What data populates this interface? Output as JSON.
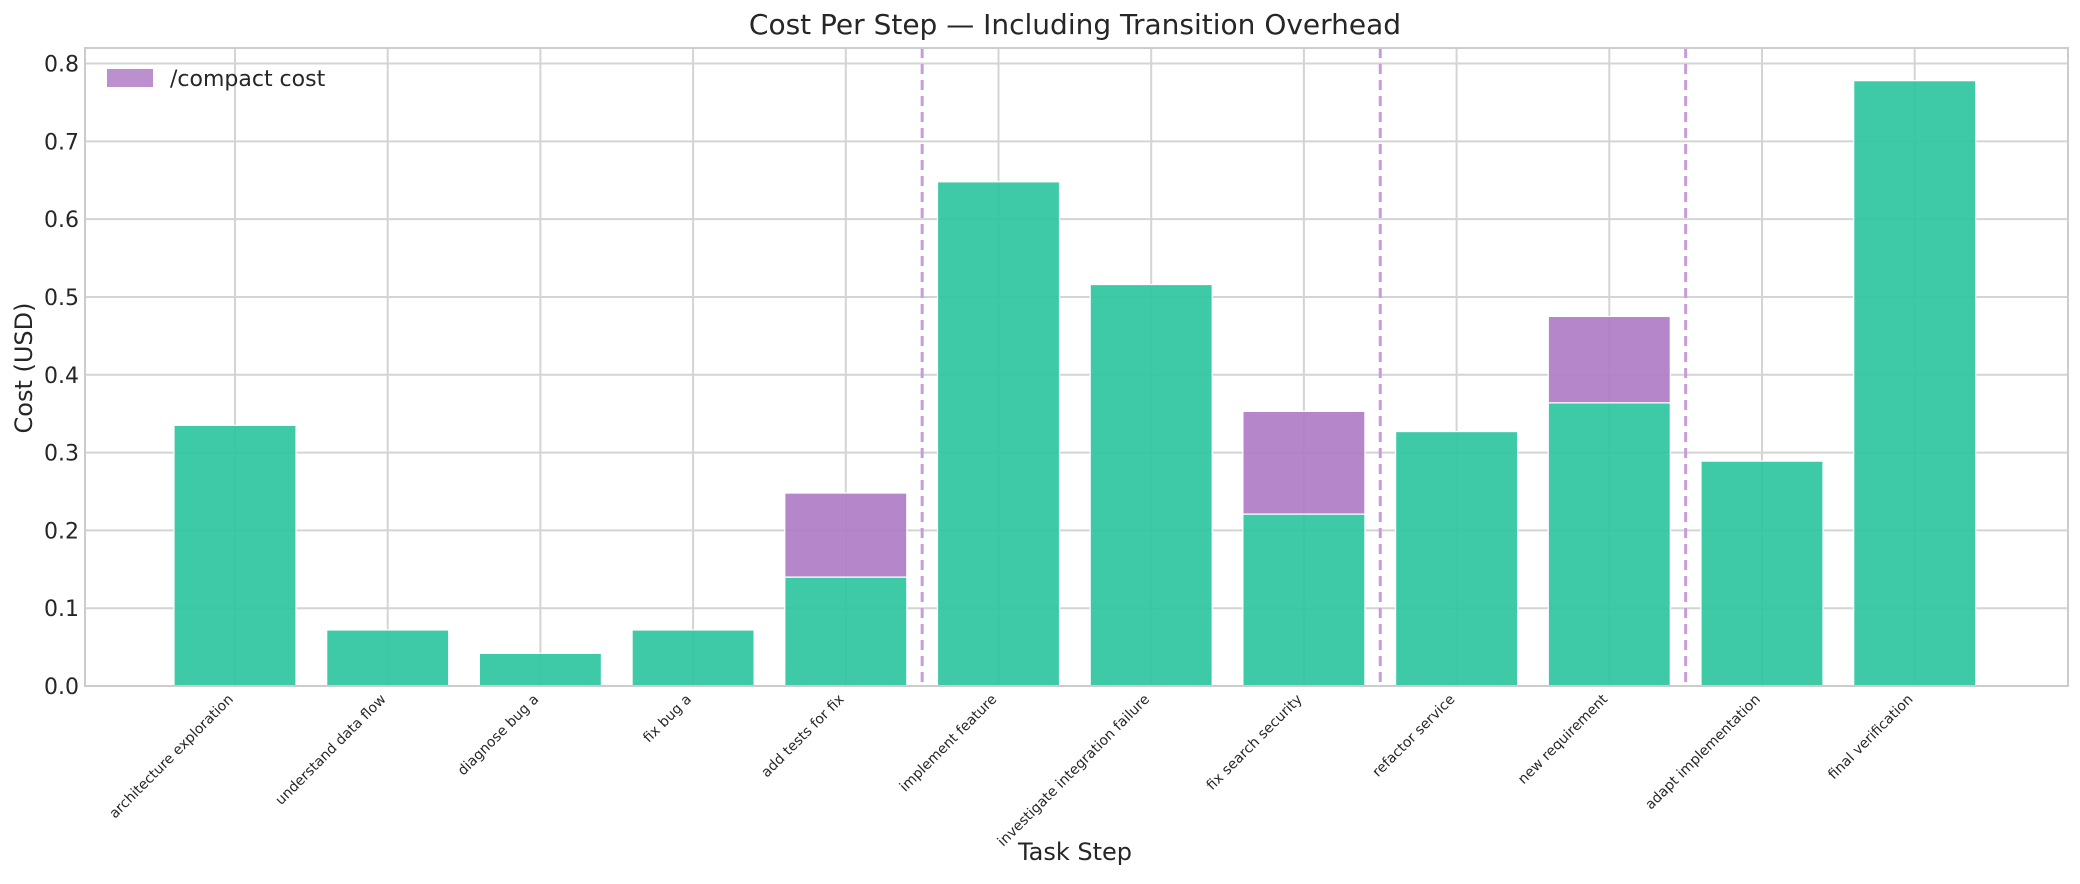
{
  "chart_data": {
    "type": "bar",
    "title": "Cost Per Step — Including Transition Overhead",
    "xlabel": "Task Step",
    "ylabel": "Cost (USD)",
    "ylim": [
      0,
      0.82
    ],
    "yticks": [
      0.0,
      0.1,
      0.2,
      0.3,
      0.4,
      0.5,
      0.6,
      0.7,
      0.8
    ],
    "ytick_labels": [
      "0.0",
      "0.1",
      "0.2",
      "0.3",
      "0.4",
      "0.5",
      "0.6",
      "0.7",
      "0.8"
    ],
    "grid": true,
    "stacked": true,
    "legend": {
      "position": "top-left",
      "entries": [
        "/compact cost"
      ]
    },
    "categories": [
      "architecture exploration",
      "understand data flow",
      "diagnose bug a",
      "fix bug a",
      "add tests for fix",
      "implement feature",
      "investigate integration failure",
      "fix search security",
      "refactor service",
      "new requirement",
      "adapt implementation",
      "final verification"
    ],
    "series": [
      {
        "color": "#2ec4a0",
        "values": [
          0.335,
          0.072,
          0.042,
          0.072,
          0.14,
          0.648,
          0.516,
          0.221,
          0.327,
          0.364,
          0.289,
          0.778
        ]
      },
      {
        "name": "/compact cost",
        "color": "#b07cc6",
        "values": [
          0,
          0,
          0,
          0,
          0.108,
          0,
          0,
          0.132,
          0,
          0.111,
          0,
          0
        ]
      }
    ],
    "transition_markers": [
      4.5,
      7.5,
      9.5
    ],
    "transition_color": "#c89be0"
  }
}
